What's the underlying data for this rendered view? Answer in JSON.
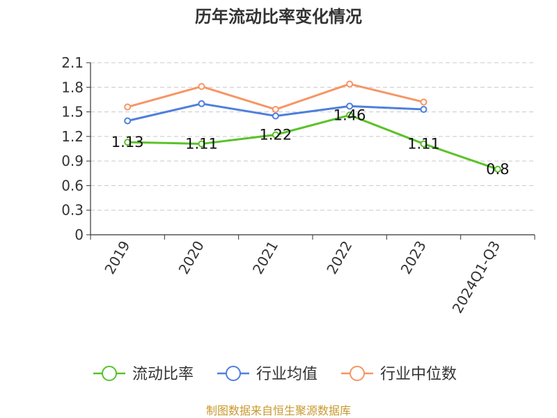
{
  "chart_data": {
    "type": "line",
    "title": "历年流动比率变化情况",
    "categories": [
      "2019",
      "2020",
      "2021",
      "2022",
      "2023",
      "2024Q1-Q3"
    ],
    "yticks": [
      "0",
      "0.3",
      "0.6",
      "0.9",
      "1.2",
      "1.5",
      "1.8",
      "2.1"
    ],
    "ylim": [
      0,
      2.1
    ],
    "grid": true,
    "legend_position": "bottom",
    "series": [
      {
        "name": "流动比率",
        "color": "#5ac229",
        "values": [
          1.13,
          1.11,
          1.22,
          1.46,
          1.11,
          0.8
        ],
        "labels": [
          "1.13",
          "1.11",
          "1.22",
          "1.46",
          "1.11",
          "0.8"
        ]
      },
      {
        "name": "行业均值",
        "color": "#4f7fdc",
        "values": [
          1.39,
          1.6,
          1.45,
          1.57,
          1.53,
          null
        ]
      },
      {
        "name": "行业中位数",
        "color": "#f79565",
        "values": [
          1.56,
          1.81,
          1.53,
          1.84,
          1.62,
          null
        ]
      }
    ],
    "source": "制图数据来自恒生聚源数据库",
    "source_color": "#c8992e"
  }
}
